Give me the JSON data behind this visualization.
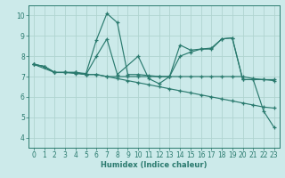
{
  "xlabel": "Humidex (Indice chaleur)",
  "bg_color": "#cceaea",
  "line_color": "#2a7a6e",
  "grid_color": "#b0d4d0",
  "xlim": [
    -0.5,
    23.5
  ],
  "ylim": [
    3.5,
    10.5
  ],
  "xticks": [
    0,
    1,
    2,
    3,
    4,
    5,
    6,
    7,
    8,
    9,
    10,
    11,
    12,
    13,
    14,
    15,
    16,
    17,
    18,
    19,
    20,
    21,
    22,
    23
  ],
  "yticks": [
    4,
    5,
    6,
    7,
    8,
    9,
    10
  ],
  "lines": [
    {
      "x": [
        0,
        1,
        2,
        3,
        4,
        5,
        6,
        7,
        8,
        9,
        10,
        11,
        12,
        13,
        14,
        15,
        16,
        17,
        18,
        19,
        20,
        21,
        22,
        23
      ],
      "y": [
        7.6,
        7.5,
        7.2,
        7.2,
        7.2,
        7.1,
        7.1,
        7.0,
        7.0,
        7.0,
        7.0,
        7.0,
        7.0,
        7.0,
        7.0,
        7.0,
        7.0,
        7.0,
        7.0,
        7.0,
        7.0,
        6.9,
        6.85,
        6.8
      ]
    },
    {
      "x": [
        0,
        1,
        2,
        3,
        4,
        5,
        6,
        7,
        8,
        9,
        10,
        11,
        12,
        13,
        14,
        15,
        16,
        17,
        18,
        19,
        20,
        21,
        22,
        23
      ],
      "y": [
        7.6,
        7.5,
        7.2,
        7.2,
        7.2,
        7.1,
        7.1,
        7.0,
        6.9,
        6.8,
        6.7,
        6.6,
        6.5,
        6.4,
        6.3,
        6.2,
        6.1,
        6.0,
        5.9,
        5.8,
        5.7,
        5.6,
        5.5,
        5.45
      ]
    },
    {
      "x": [
        0,
        1,
        2,
        3,
        4,
        5,
        6,
        7,
        8,
        10,
        11,
        12,
        13,
        14,
        15,
        16,
        17,
        18,
        19,
        20,
        21,
        22,
        23
      ],
      "y": [
        7.6,
        7.5,
        7.2,
        7.2,
        7.15,
        7.1,
        8.0,
        8.85,
        7.1,
        8.0,
        6.9,
        6.65,
        7.0,
        8.0,
        8.2,
        8.35,
        8.4,
        8.85,
        8.9,
        6.85,
        6.85,
        5.3,
        4.5
      ]
    },
    {
      "x": [
        0,
        2,
        3,
        4,
        5,
        6,
        7,
        8,
        9,
        10,
        11,
        12,
        13,
        14,
        15,
        16,
        17,
        18,
        19,
        20,
        21,
        22,
        23
      ],
      "y": [
        7.6,
        7.2,
        7.2,
        7.2,
        7.15,
        8.8,
        10.1,
        9.65,
        7.1,
        7.1,
        7.05,
        7.0,
        7.0,
        8.55,
        8.3,
        8.35,
        8.35,
        8.85,
        8.9,
        6.85,
        6.85,
        6.85,
        6.85
      ]
    }
  ]
}
